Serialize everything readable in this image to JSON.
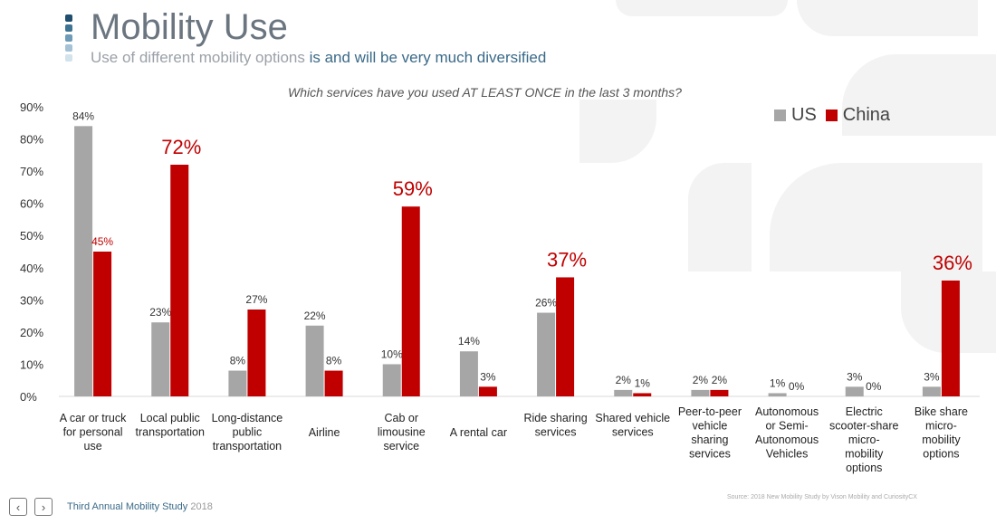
{
  "header": {
    "title": "Mobility Use",
    "subtitle_plain": "Use of different mobility options ",
    "subtitle_accent": "is and will be very much diversified",
    "bullet_colors": [
      "#1f4e6e",
      "#3f7394",
      "#6d9bb8",
      "#a3c2d6",
      "#d3e3ec"
    ]
  },
  "question": "Which services have you used AT LEAST ONCE in the last 3 months?",
  "footer": {
    "prev_icon": "chevron-left-icon",
    "next_icon": "chevron-right-icon",
    "study_title": "Third Annual Mobility Study",
    "study_year": "2018",
    "source": "Source: 2018 New Mobility Study by Vison Mobility  and CuriosityCX"
  },
  "colors": {
    "us": "#a6a6a6",
    "china": "#c00000",
    "text": "#333333"
  },
  "chart_data": {
    "type": "bar",
    "title": "",
    "xlabel": "",
    "ylabel": "",
    "ylim": [
      0,
      90
    ],
    "yticks": [
      "0%",
      "10%",
      "20%",
      "30%",
      "40%",
      "50%",
      "60%",
      "70%",
      "80%",
      "90%"
    ],
    "legend_position": "top-right",
    "categories": [
      [
        "A car or truck",
        "for personal",
        "use"
      ],
      [
        "Local public",
        "transportation"
      ],
      [
        "Long-distance",
        "public",
        "transportation"
      ],
      [
        "Airline"
      ],
      [
        "Cab or",
        "limousine",
        "service"
      ],
      [
        "A rental car"
      ],
      [
        "Ride sharing",
        "services"
      ],
      [
        "Shared vehicle",
        "services"
      ],
      [
        "Peer-to-peer",
        "vehicle",
        "sharing",
        "services"
      ],
      [
        "Autonomous",
        "or Semi-",
        "Autonomous",
        "Vehicles"
      ],
      [
        "Electric",
        "scooter-share",
        "micro-",
        "mobility",
        "options"
      ],
      [
        "Bike share",
        "micro-",
        "mobility",
        "options"
      ]
    ],
    "series": [
      {
        "name": "US",
        "color": "#a6a6a6",
        "values": [
          84,
          23,
          8,
          22,
          10,
          14,
          26,
          2,
          2,
          1,
          3,
          3
        ],
        "labels": [
          "84%",
          "23%",
          "8%",
          "22%",
          "10%",
          "14%",
          "26%",
          "2%",
          "2%",
          "1%",
          "3%",
          "3%"
        ]
      },
      {
        "name": "China",
        "color": "#c00000",
        "values": [
          45,
          72,
          27,
          8,
          59,
          3,
          37,
          1,
          2,
          0,
          0,
          36
        ],
        "labels": [
          "45%",
          "72%",
          "27%",
          "8%",
          "59%",
          "3%",
          "37%",
          "1%",
          "2%",
          "0%",
          "0%",
          "36%"
        ],
        "emphasized": [
          false,
          true,
          false,
          false,
          true,
          false,
          true,
          false,
          false,
          false,
          false,
          true
        ]
      }
    ]
  }
}
